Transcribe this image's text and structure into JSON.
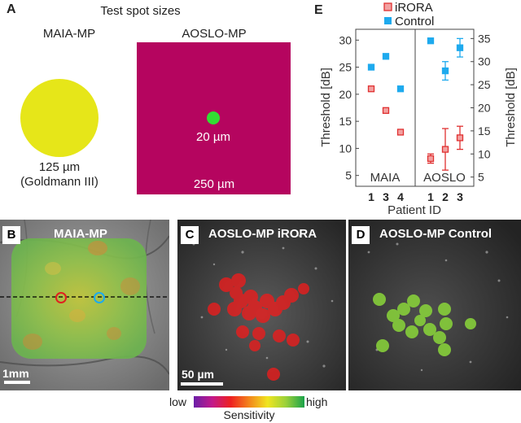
{
  "panel_a": {
    "letter": "A",
    "title": "Test spot sizes",
    "maia_heading": "MAIA-MP",
    "aoslo_heading": "AOSLO-MP",
    "maia_size": "125 µm",
    "maia_note": "(Goldmann III)",
    "aoslo_spot_size": "20 µm",
    "aoslo_field_size": "250 µm",
    "colors": {
      "maia_spot": "#e6e619",
      "aoslo_field": "#b5055f",
      "aoslo_spot": "#33dd33"
    }
  },
  "panel_b": {
    "letter": "B",
    "title": "MAIA-MP",
    "scale": "1mm"
  },
  "panel_c": {
    "letter": "C",
    "title": "AOSLO-MP iRORA",
    "scale": "50 µm"
  },
  "panel_d": {
    "letter": "D",
    "title": "AOSLO-MP Control"
  },
  "colorbar": {
    "low": "low",
    "high": "high",
    "label": "Sensitivity"
  },
  "chart_data": {
    "type": "scatter",
    "letter": "E",
    "legend": [
      "iRORA",
      "Control"
    ],
    "legend_colors": {
      "iRORA": "#e03030",
      "Control": "#1eaaee"
    },
    "xlabel": "Patient ID",
    "groups": [
      "MAIA",
      "AOSLO"
    ],
    "left_axis": {
      "label": "Threshold [dB]",
      "ylim": [
        3,
        32
      ],
      "ticks": [
        5,
        10,
        15,
        20,
        25,
        30
      ]
    },
    "right_axis": {
      "label": "Threshold [dB]",
      "ylim": [
        3,
        37
      ],
      "ticks": [
        5,
        10,
        15,
        20,
        25,
        30,
        35
      ]
    },
    "maia": {
      "categories": [
        "1",
        "3",
        "4"
      ],
      "series": [
        {
          "name": "iRORA",
          "values": [
            21,
            17,
            13
          ]
        },
        {
          "name": "Control",
          "values": [
            25,
            27,
            21
          ]
        }
      ]
    },
    "aoslo": {
      "categories": [
        "1",
        "2",
        "3"
      ],
      "series": [
        {
          "name": "iRORA",
          "values": [
            9,
            11,
            13.5
          ],
          "err": [
            1,
            4.5,
            2.5
          ]
        },
        {
          "name": "Control",
          "values": [
            34.5,
            28,
            33
          ],
          "err": [
            0.5,
            2,
            2
          ]
        }
      ]
    }
  }
}
